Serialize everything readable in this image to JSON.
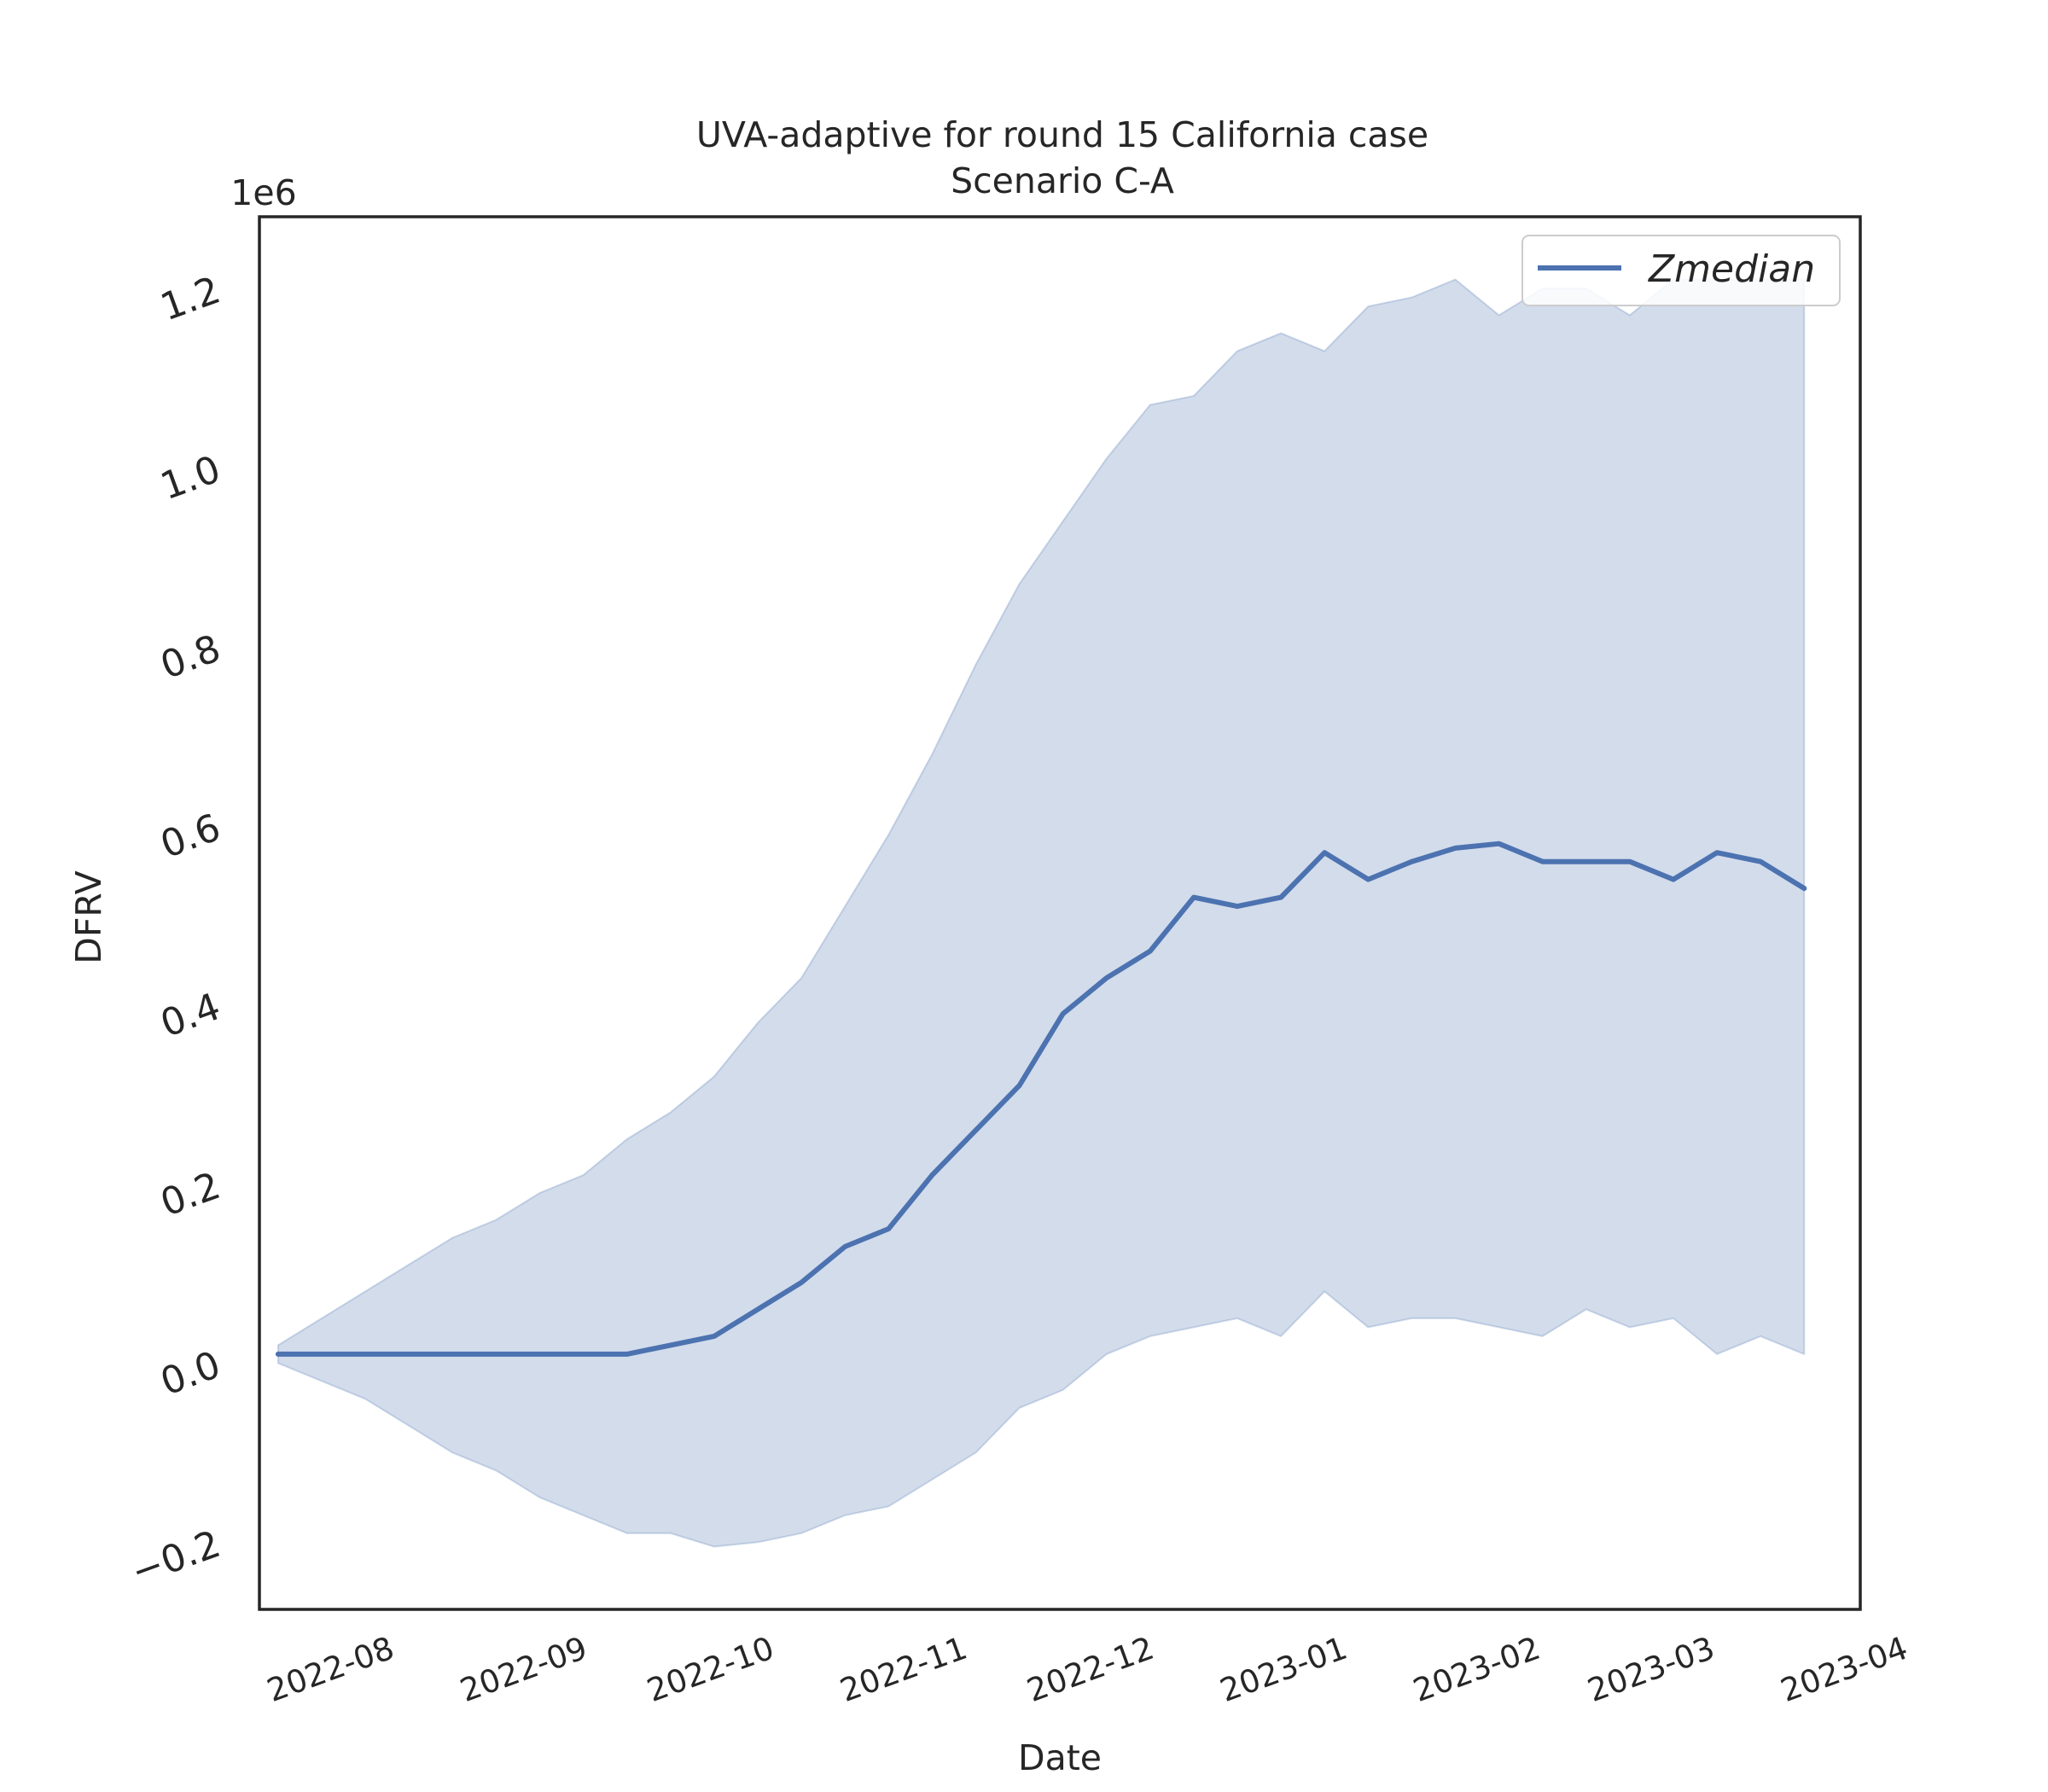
{
  "chart_data": {
    "type": "line",
    "title": "UVA-adaptive for round 15 California case",
    "subtitle": "Scenario C-A",
    "xlabel": "Date",
    "ylabel": "DFRV",
    "y_offset_label": "1e6",
    "y_multiplier": 1000000,
    "xlim": [
      "2022-07-20",
      "2023-04-03"
    ],
    "ylim": [
      -0.275,
      1.28
    ],
    "x_ticks": [
      "2022-08",
      "2022-09",
      "2022-10",
      "2022-11",
      "2022-12",
      "2023-01",
      "2023-02",
      "2023-03",
      "2023-04"
    ],
    "y_ticks": [
      "−0.2",
      "0.0",
      "0.2",
      "0.4",
      "0.6",
      "0.8",
      "1.0",
      "1.2"
    ],
    "y_tick_values": [
      -0.2,
      0.0,
      0.2,
      0.4,
      0.6,
      0.8,
      1.0,
      1.2
    ],
    "grid": false,
    "legend_position": "upper right",
    "colors": {
      "line": "#4c72b0",
      "band": "#4c72b0"
    },
    "x": [
      "2022-07-23",
      "2022-07-30",
      "2022-08-06",
      "2022-08-13",
      "2022-08-20",
      "2022-08-27",
      "2022-09-03",
      "2022-09-10",
      "2022-09-17",
      "2022-09-24",
      "2022-10-01",
      "2022-10-08",
      "2022-10-15",
      "2022-10-22",
      "2022-10-29",
      "2022-11-05",
      "2022-11-12",
      "2022-11-19",
      "2022-11-26",
      "2022-12-03",
      "2022-12-10",
      "2022-12-17",
      "2022-12-24",
      "2022-12-31",
      "2023-01-07",
      "2023-01-14",
      "2023-01-21",
      "2023-01-28",
      "2023-02-04",
      "2023-02-11",
      "2023-02-18",
      "2023-02-25",
      "2023-03-04",
      "2023-03-11",
      "2023-03-18",
      "2023-03-25"
    ],
    "series": [
      {
        "name": "Zmedian",
        "values": [
          0.01,
          0.01,
          0.01,
          0.01,
          0.01,
          0.01,
          0.01,
          0.01,
          0.01,
          0.02,
          0.03,
          0.06,
          0.09,
          0.13,
          0.15,
          0.21,
          0.26,
          0.31,
          0.39,
          0.43,
          0.46,
          0.52,
          0.51,
          0.52,
          0.57,
          0.54,
          0.56,
          0.575,
          0.58,
          0.56,
          0.56,
          0.56,
          0.54,
          0.57,
          0.56,
          0.53
        ]
      }
    ],
    "band": {
      "lower": [
        0.0,
        -0.02,
        -0.04,
        -0.07,
        -0.1,
        -0.12,
        -0.15,
        -0.17,
        -0.19,
        -0.19,
        -0.205,
        -0.2,
        -0.19,
        -0.17,
        -0.16,
        -0.13,
        -0.1,
        -0.05,
        -0.03,
        0.01,
        0.03,
        0.04,
        0.05,
        0.03,
        0.08,
        0.04,
        0.05,
        0.05,
        0.04,
        0.03,
        0.06,
        0.04,
        0.05,
        0.01,
        0.03,
        0.01
      ],
      "upper": [
        0.02,
        0.05,
        0.08,
        0.11,
        0.14,
        0.16,
        0.19,
        0.21,
        0.25,
        0.28,
        0.32,
        0.38,
        0.43,
        0.51,
        0.59,
        0.68,
        0.78,
        0.87,
        0.94,
        1.01,
        1.07,
        1.08,
        1.13,
        1.15,
        1.13,
        1.18,
        1.19,
        1.21,
        1.17,
        1.2,
        1.2,
        1.17,
        1.21,
        1.21,
        1.21,
        1.21
      ]
    }
  }
}
